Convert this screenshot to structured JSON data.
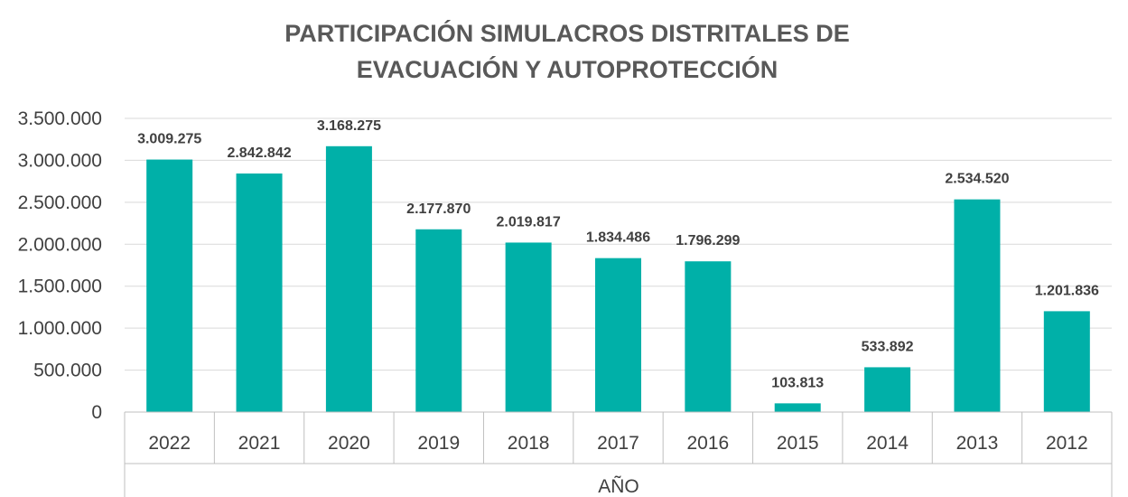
{
  "chart_data": {
    "type": "bar",
    "title_lines": [
      "PARTICIPACIÓN SIMULACROS DISTRITALES DE",
      "EVACUACIÓN Y AUTOPROTECCIÓN"
    ],
    "xlabel": "AÑO",
    "ylabel": "",
    "categories": [
      "2022",
      "2021",
      "2020",
      "2019",
      "2018",
      "2017",
      "2016",
      "2015",
      "2014",
      "2013",
      "2012"
    ],
    "values": [
      3009275,
      2842842,
      3168275,
      2177870,
      2019817,
      1834486,
      1796299,
      103813,
      533892,
      2534520,
      1201836
    ],
    "data_labels": [
      "3.009.275",
      "2.842.842",
      "3.168.275",
      "2.177.870",
      "2.019.817",
      "1.834.486",
      "1.796.299",
      "103.813",
      "533.892",
      "2.534.520",
      "1.201.836"
    ],
    "yticks": [
      0,
      500000,
      1000000,
      1500000,
      2000000,
      2500000,
      3000000,
      3500000
    ],
    "ytick_labels": [
      "0",
      "500.000",
      "1.000.000",
      "1.500.000",
      "2.000.000",
      "2.500.000",
      "3.000.000",
      "3.500.000"
    ],
    "ylim": [
      0,
      3500000
    ],
    "grid": true,
    "legend": "none",
    "colors": {
      "bar": "#00B0A8",
      "grid": "#D9D9D9",
      "axis": "#BFBFBF"
    }
  }
}
